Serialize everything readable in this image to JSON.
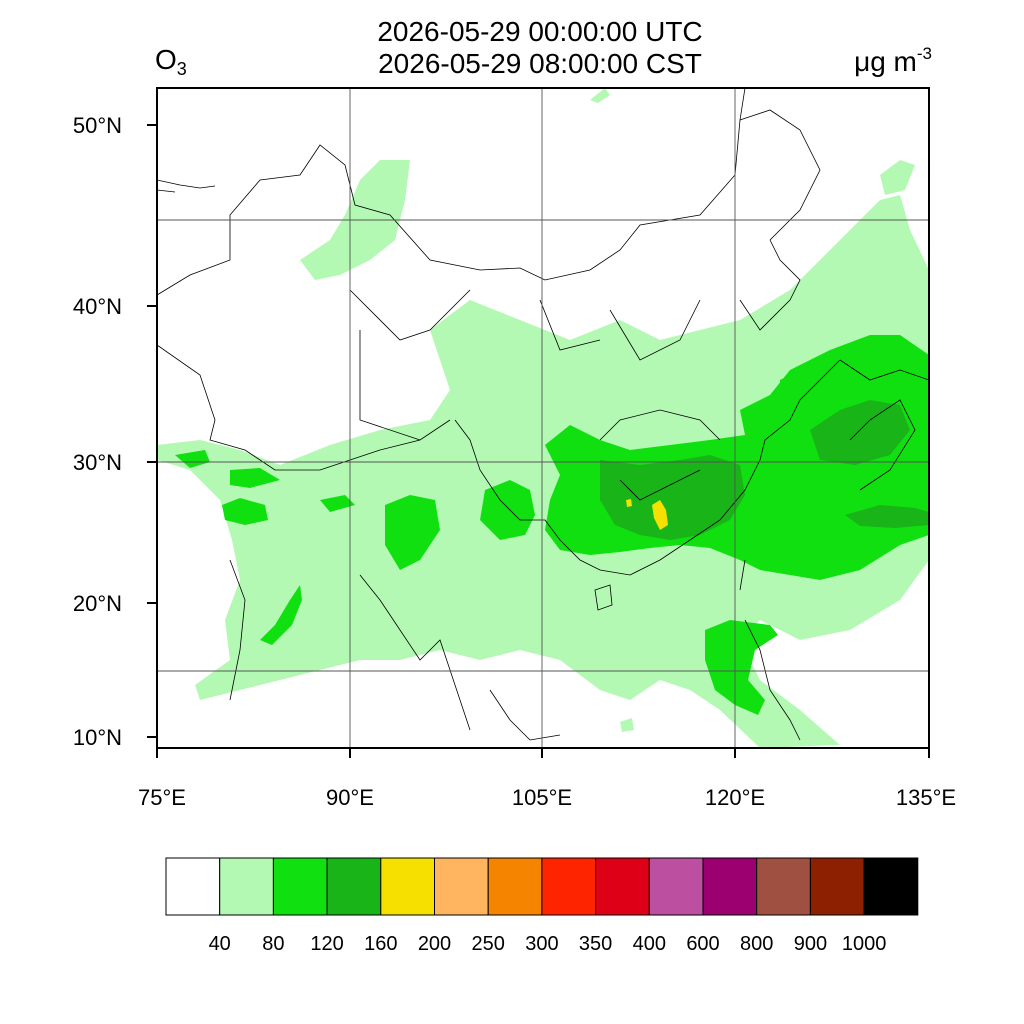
{
  "header": {
    "title_utc": "2026-05-29 00:00:00 UTC",
    "title_local": "2026-05-29 08:00:00 CST",
    "species": "O",
    "species_sub": "3",
    "units": "μg m",
    "units_exp": "-3"
  },
  "map": {
    "lon_range": [
      75,
      135
    ],
    "lat_range": [
      9,
      52
    ],
    "lon_ticks": [
      "75°E",
      "90°E",
      "105°E",
      "120°E",
      "135°E"
    ],
    "lat_ticks": [
      "10°N",
      "20°N",
      "30°N",
      "40°N",
      "50°N"
    ],
    "fields": [
      {
        "name": "o3-light-green-region",
        "level": "40-80",
        "color": "#b3f9b3"
      },
      {
        "name": "o3-green-region",
        "level": "80-120",
        "color": "#10e010"
      },
      {
        "name": "o3-dark-green-region",
        "level": "120-160",
        "color": "#18b418"
      },
      {
        "name": "o3-yellow-region",
        "level": "160-200",
        "color": "#f5e000"
      }
    ]
  },
  "colorbar": {
    "colors": [
      "#ffffff",
      "#b3f9b3",
      "#10e010",
      "#18b418",
      "#f5e000",
      "#ffb55f",
      "#f58400",
      "#ff2400",
      "#dd0016",
      "#bc4fa0",
      "#9c0070",
      "#a05040",
      "#8c2000",
      "#000000"
    ],
    "labels": [
      "40",
      "80",
      "120",
      "160",
      "200",
      "250",
      "300",
      "350",
      "400",
      "600",
      "800",
      "900",
      "1000"
    ]
  }
}
